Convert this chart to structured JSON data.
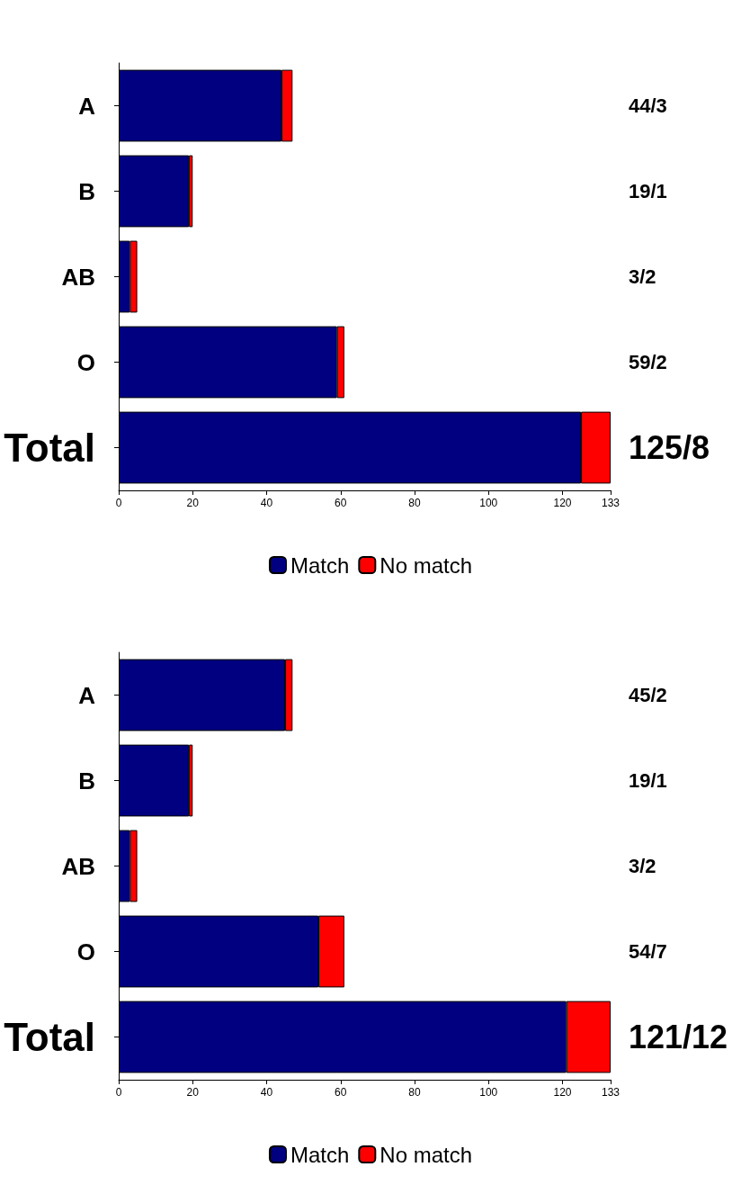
{
  "chart_data": [
    {
      "type": "bar",
      "orientation": "horizontal",
      "stacked": true,
      "categories": [
        "A",
        "B",
        "AB",
        "O",
        "Total"
      ],
      "xlim": [
        0,
        133
      ],
      "xticks": [
        0,
        20,
        40,
        60,
        80,
        100,
        120,
        133
      ],
      "legend": "bottom",
      "grid": false,
      "series": [
        {
          "name": "Match",
          "color": "#000080",
          "values": [
            44,
            19,
            3,
            59,
            125
          ]
        },
        {
          "name": "No match",
          "color": "#ff0000",
          "values": [
            3,
            1,
            2,
            2,
            8
          ]
        }
      ],
      "annotations": [
        "44/3",
        "19/1",
        "3/2",
        "59/2",
        "125/8"
      ]
    },
    {
      "type": "bar",
      "orientation": "horizontal",
      "stacked": true,
      "categories": [
        "A",
        "B",
        "AB",
        "O",
        "Total"
      ],
      "xlim": [
        0,
        133
      ],
      "xticks": [
        0,
        20,
        40,
        60,
        80,
        100,
        120,
        133
      ],
      "legend": "bottom",
      "grid": false,
      "series": [
        {
          "name": "Match",
          "color": "#000080",
          "values": [
            45,
            19,
            3,
            54,
            121
          ]
        },
        {
          "name": "No match",
          "color": "#ff0000",
          "values": [
            2,
            1,
            2,
            7,
            12
          ]
        }
      ],
      "annotations": [
        "45/2",
        "19/1",
        "3/2",
        "54/7",
        "121/12"
      ]
    }
  ]
}
